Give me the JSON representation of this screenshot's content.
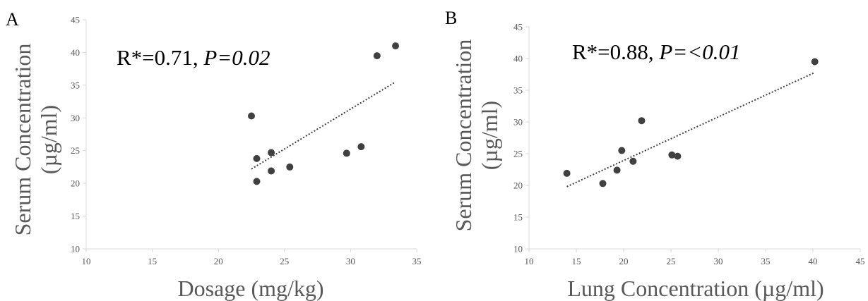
{
  "chart_data": [
    {
      "type": "scatter",
      "panel_label": "A",
      "annotation_prefix": "R*=0.71, ",
      "annotation_p": "P=0.02",
      "xlabel": "Dosage (mg/kg)",
      "ylabel_line1": "Serum Concentration",
      "ylabel_line2": "(µg/ml)",
      "xlim": [
        10,
        35
      ],
      "ylim": [
        10,
        45
      ],
      "xticks": [
        10,
        15,
        20,
        25,
        30,
        35
      ],
      "yticks": [
        10,
        15,
        20,
        25,
        30,
        35,
        40,
        45
      ],
      "points": [
        {
          "x": 22.5,
          "y": 30.3
        },
        {
          "x": 22.9,
          "y": 23.8
        },
        {
          "x": 22.9,
          "y": 20.3
        },
        {
          "x": 24.0,
          "y": 24.7
        },
        {
          "x": 24.0,
          "y": 21.9
        },
        {
          "x": 25.4,
          "y": 22.5
        },
        {
          "x": 29.7,
          "y": 24.6
        },
        {
          "x": 30.8,
          "y": 25.6
        },
        {
          "x": 32.0,
          "y": 39.5
        },
        {
          "x": 33.4,
          "y": 41.0
        }
      ],
      "trendline": {
        "x": [
          22.5,
          33.4
        ],
        "y": [
          22.2,
          35.5
        ]
      },
      "grid": false
    },
    {
      "type": "scatter",
      "panel_label": "B",
      "annotation_prefix": "R*=0.88, ",
      "annotation_p": "P=<0.01",
      "xlabel": "Lung Concentration (µg/ml)",
      "ylabel_line1": "Serum Concentration",
      "ylabel_line2": "(µg/ml)",
      "xlim": [
        10,
        45
      ],
      "ylim": [
        10,
        45
      ],
      "xticks": [
        10,
        15,
        20,
        25,
        30,
        35,
        40,
        45
      ],
      "yticks": [
        10,
        15,
        20,
        25,
        30,
        35,
        40,
        45
      ],
      "points": [
        {
          "x": 14.0,
          "y": 21.9
        },
        {
          "x": 17.8,
          "y": 20.3
        },
        {
          "x": 19.3,
          "y": 22.4
        },
        {
          "x": 19.8,
          "y": 25.5
        },
        {
          "x": 21.0,
          "y": 23.8
        },
        {
          "x": 21.9,
          "y": 30.2
        },
        {
          "x": 25.1,
          "y": 24.8
        },
        {
          "x": 25.7,
          "y": 24.6
        },
        {
          "x": 40.2,
          "y": 39.5
        }
      ],
      "trendline": {
        "x": [
          14.0,
          40.2
        ],
        "y": [
          19.8,
          37.8
        ]
      },
      "grid": false
    }
  ],
  "colors": {
    "marker": "#404040",
    "axis": "#d9d9d9",
    "text": "#595959"
  }
}
